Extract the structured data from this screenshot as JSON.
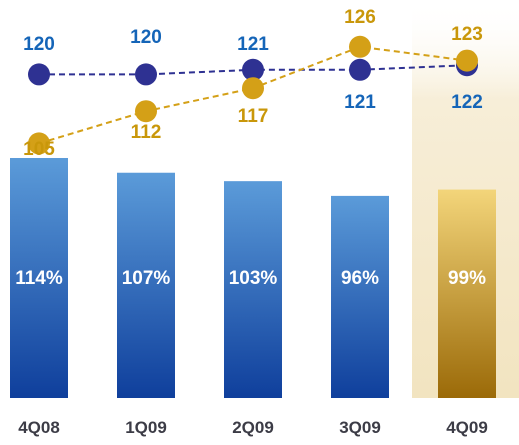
{
  "chart_data": {
    "type": "bar",
    "categories": [
      "4Q08",
      "1Q09",
      "2Q09",
      "3Q09",
      "4Q09"
    ],
    "bar_values": [
      114,
      107,
      103,
      96,
      99
    ],
    "bar_labels": [
      "114%",
      "107%",
      "103%",
      "96%",
      "99%"
    ],
    "line_series": [
      {
        "values": [
          120,
          120,
          121,
          121,
          122
        ],
        "labels": [
          "120",
          "120",
          "121",
          "121",
          "122"
        ],
        "color": "#2e3192"
      },
      {
        "values": [
          105,
          112,
          117,
          126,
          123
        ],
        "labels": [
          "105",
          "112",
          "117",
          "126",
          "123"
        ],
        "color": "#d4a017"
      }
    ],
    "highlight_category": "4Q09",
    "colors": {
      "bar_blue_top": "#5b9bd9",
      "bar_blue_bottom": "#0f3f9c",
      "bar_gold_top": "#f3d57a",
      "bar_gold_bottom": "#9b6a08",
      "highlight_band": "#f7eed8",
      "blue_label": "#1565b8",
      "gold_label": "#c9970a",
      "axis_text": "#3c3c46"
    }
  }
}
